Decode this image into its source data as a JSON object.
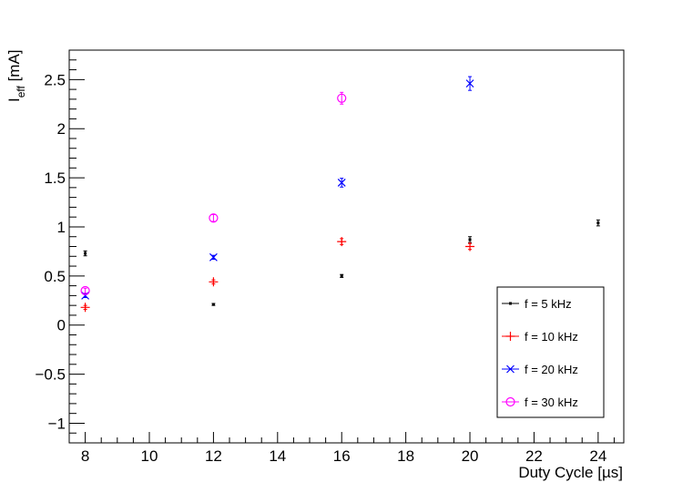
{
  "chart_data": {
    "type": "scatter",
    "title": "",
    "xlabel_main": "Duty Cycle [",
    "xlabel_unit": "µs",
    "xlabel_close": "]",
    "ylabel_main": "I",
    "ylabel_sub": "eff",
    "ylabel_unit": " [mA]",
    "xlim": [
      7.5,
      24.8
    ],
    "ylim": [
      -1.2,
      2.8
    ],
    "x_ticks": [
      8,
      10,
      12,
      14,
      16,
      18,
      20,
      22,
      24
    ],
    "y_ticks": [
      -1,
      -0.5,
      0,
      0.5,
      1,
      1.5,
      2,
      2.5
    ],
    "x_tick_labels": [
      "8",
      "10",
      "12",
      "14",
      "16",
      "18",
      "20",
      "22",
      "24"
    ],
    "y_tick_labels": [
      "−1",
      "−0.5",
      "0",
      "0.5",
      "1",
      "1.5",
      "2",
      "2.5"
    ],
    "grid": false,
    "legend_position": "bottom-right",
    "series": [
      {
        "name": "f = 5 kHz",
        "color": "#000000",
        "marker": "dot",
        "points": [
          {
            "x": 8,
            "y": 0.73,
            "err": 0.025
          },
          {
            "x": 12,
            "y": 0.21,
            "err": 0.01
          },
          {
            "x": 16,
            "y": 0.5,
            "err": 0.015
          },
          {
            "x": 20,
            "y": 0.87,
            "err": 0.03
          },
          {
            "x": 24,
            "y": 1.04,
            "err": 0.03
          }
        ]
      },
      {
        "name": "f = 10 kHz",
        "color": "#ff0000",
        "marker": "plus",
        "points": [
          {
            "x": 8,
            "y": 0.18,
            "err": 0.02
          },
          {
            "x": 12,
            "y": 0.44,
            "err": 0.02
          },
          {
            "x": 16,
            "y": 0.85,
            "err": 0.03
          },
          {
            "x": 20,
            "y": 0.8,
            "err": 0.03
          }
        ]
      },
      {
        "name": "f = 20 kHz",
        "color": "#0000ff",
        "marker": "cross",
        "points": [
          {
            "x": 8,
            "y": 0.3,
            "err": 0.02
          },
          {
            "x": 12,
            "y": 0.69,
            "err": 0.02
          },
          {
            "x": 16,
            "y": 1.45,
            "err": 0.045
          },
          {
            "x": 20,
            "y": 2.46,
            "err": 0.07
          }
        ]
      },
      {
        "name": "f = 30 kHz",
        "color": "#ff00ff",
        "marker": "circle",
        "points": [
          {
            "x": 8,
            "y": 0.35,
            "err": 0.025
          },
          {
            "x": 12,
            "y": 1.09,
            "err": 0.035
          },
          {
            "x": 16,
            "y": 2.31,
            "err": 0.06
          }
        ]
      }
    ]
  }
}
